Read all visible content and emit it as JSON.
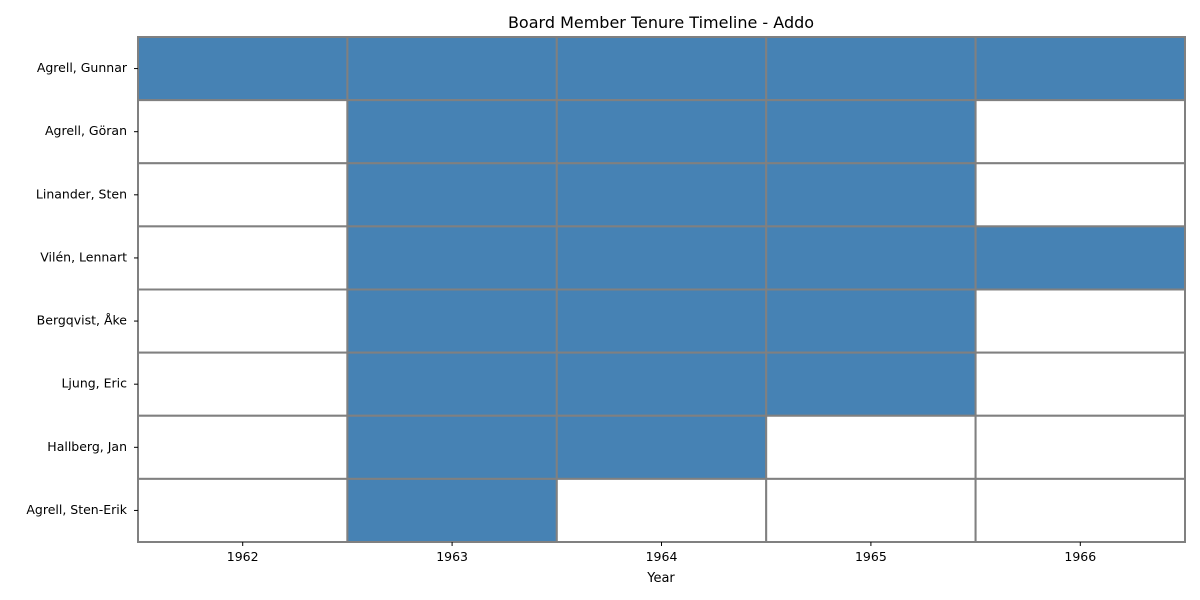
{
  "chart_data": {
    "type": "heatmap",
    "title": "Board Member Tenure Timeline - Addo",
    "xlabel": "Year",
    "ylabel": "",
    "x": [
      "1962",
      "1963",
      "1964",
      "1965",
      "1966"
    ],
    "y": [
      "Agrell, Gunnar",
      "Agrell, Göran",
      "Linander, Sten",
      "Vilén, Lennart",
      "Bergqvist, Åke",
      "Ljung, Eric",
      "Hallberg, Jan",
      "Agrell, Sten-Erik"
    ],
    "values": [
      [
        1,
        1,
        1,
        1,
        1
      ],
      [
        0,
        1,
        1,
        1,
        0
      ],
      [
        0,
        1,
        1,
        1,
        0
      ],
      [
        0,
        1,
        1,
        1,
        1
      ],
      [
        0,
        1,
        1,
        1,
        0
      ],
      [
        0,
        1,
        1,
        1,
        0
      ],
      [
        0,
        1,
        1,
        0,
        0
      ],
      [
        0,
        1,
        0,
        0,
        0
      ]
    ],
    "colors": {
      "active": "#4682b4",
      "inactive": "#ffffff",
      "gridline": "#808080"
    },
    "grid": true,
    "legend": "none"
  }
}
